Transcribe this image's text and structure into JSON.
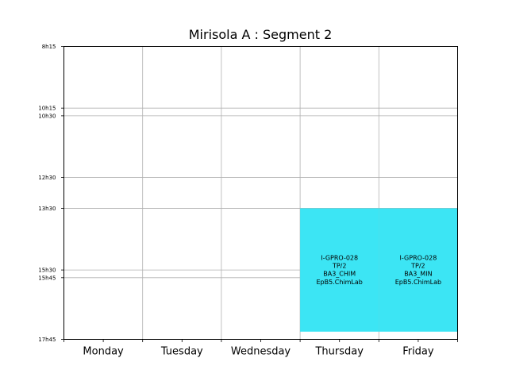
{
  "chart_data": {
    "type": "timetable",
    "title": "Mirisola A : Segment 2",
    "days": [
      "Monday",
      "Tuesday",
      "Wednesday",
      "Thursday",
      "Friday"
    ],
    "time_ticks": [
      {
        "label": "8h15",
        "value": 8.25
      },
      {
        "label": "10h15",
        "value": 10.25
      },
      {
        "label": "10h30",
        "value": 10.5
      },
      {
        "label": "12h30",
        "value": 12.5
      },
      {
        "label": "13h30",
        "value": 13.5
      },
      {
        "label": "15h30",
        "value": 15.5
      },
      {
        "label": "15h45",
        "value": 15.75
      },
      {
        "label": "17h45",
        "value": 17.75
      }
    ],
    "ylim": [
      8.25,
      17.75
    ],
    "grid": true,
    "events": [
      {
        "day": "Thursday",
        "start": 13.5,
        "end": 17.5,
        "color": "#3ce5f4",
        "lines": [
          "I-GPRO-028",
          "TP/2",
          "BA3_CHIM",
          "EpB5.ChimLab"
        ]
      },
      {
        "day": "Friday",
        "start": 13.5,
        "end": 17.5,
        "color": "#3ce5f4",
        "lines": [
          "I-GPRO-028",
          "TP/2",
          "BA3_MIN",
          "EpB5.ChimLab"
        ]
      }
    ]
  }
}
